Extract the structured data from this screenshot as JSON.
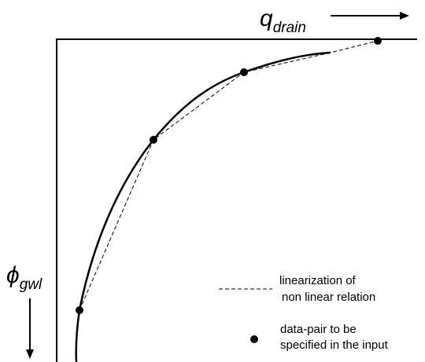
{
  "axes": {
    "x_label": {
      "symbol": "q",
      "subscript": "drain"
    },
    "y_label": {
      "symbol": "ϕ",
      "subscript": "gwl"
    }
  },
  "legend": {
    "linearization": [
      "linearization of",
      "non linear relation"
    ],
    "data_pair": [
      "data-pair to be",
      "specified in the input"
    ]
  }
}
